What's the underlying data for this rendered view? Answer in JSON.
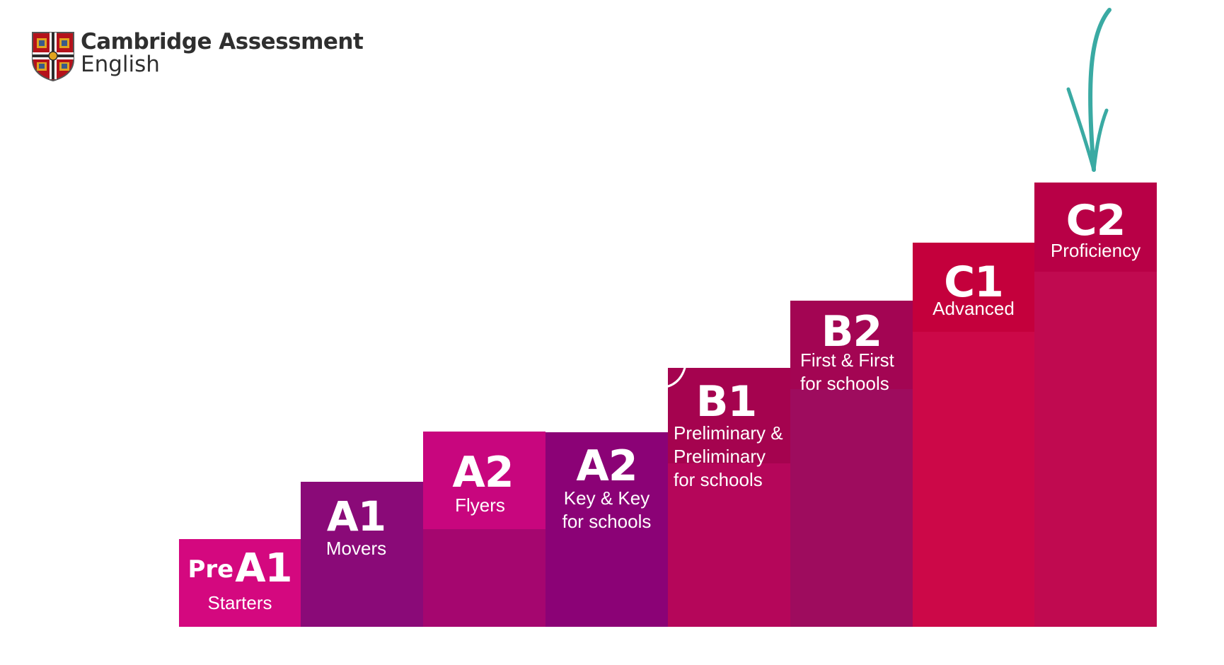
{
  "logo": {
    "line1": "Cambridge Assessment",
    "line2": "English"
  },
  "steps": [
    {
      "level": "A1",
      "prefix": "Pre",
      "exam": "Starters"
    },
    {
      "level": "A1",
      "exam": "Movers"
    },
    {
      "level": "A2",
      "exam": "Flyers"
    },
    {
      "level": "A2",
      "exam_line1": "Key & Key",
      "exam_line2": "for schools"
    },
    {
      "level": "B1",
      "exam_line1": "Preliminary &",
      "exam_line2": "Preliminary",
      "exam_line3": "for schools"
    },
    {
      "level": "B2",
      "exam_line1": "First & First",
      "exam_line2": "for schools"
    },
    {
      "level": "C1",
      "exam": "Advanced"
    },
    {
      "level": "C2",
      "exam": "Proficiency"
    }
  ],
  "colors": {
    "starters": "#d4087f",
    "movers": "#8a0a78",
    "flyers_head": "#c8067e",
    "flyers_body": "#a5066f",
    "key": "#8b0276",
    "preliminary_head": "#a5034f",
    "preliminary_body": "#b5065a",
    "first_head": "#a30553",
    "first_body": "#9e0c5e",
    "advanced_head": "#c4003c",
    "advanced_body": "#cc0848",
    "proficiency_head": "#b80046",
    "proficiency_body": "#c00a50",
    "arrow": "#3aaaa3",
    "logo_text": "#2f2f2f"
  },
  "icons": [
    "cambridge-crest-icon",
    "down-arrow-icon"
  ]
}
